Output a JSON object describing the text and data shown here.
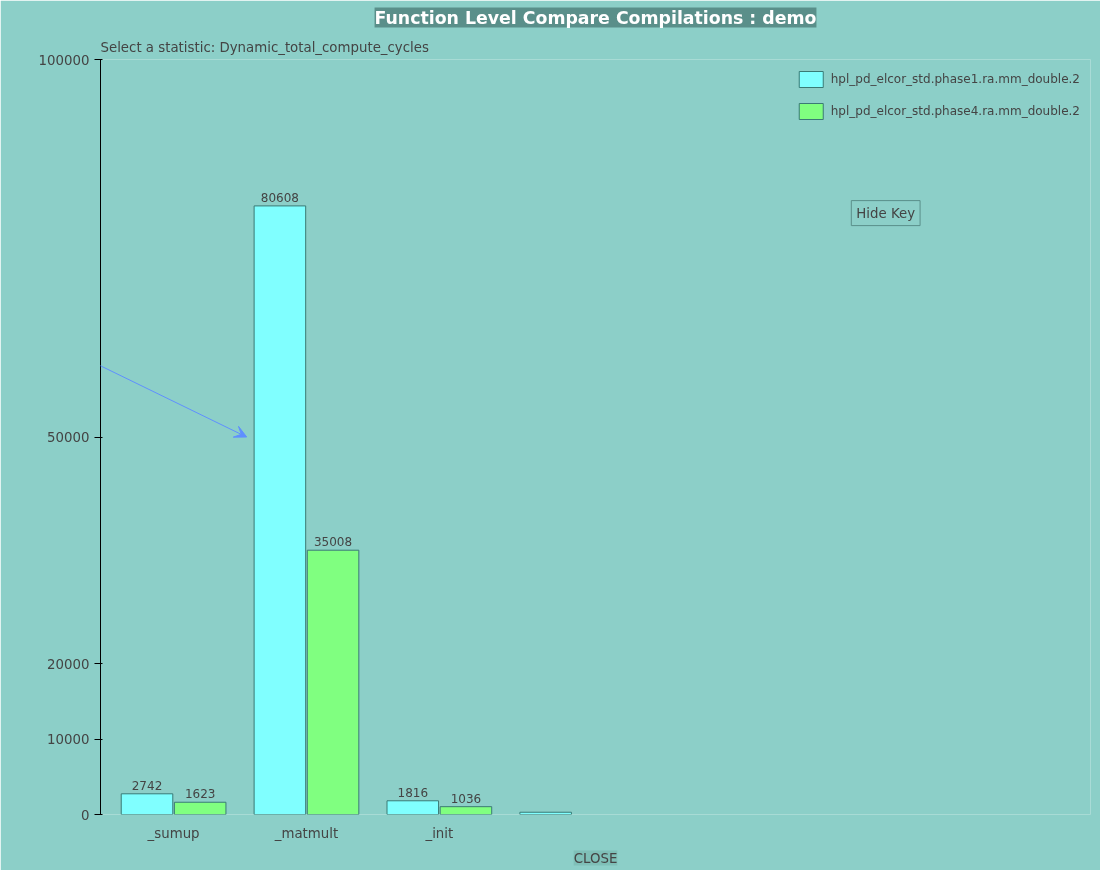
{
  "chart_data": {
    "type": "bar",
    "title": "Function Level Compare Compilations : demo",
    "subtitle": "Select a statistic: Dynamic_total_compute_cycles",
    "categories": [
      "_sumup",
      "_matmult",
      "_init",
      null
    ],
    "series": [
      {
        "name": "hpl_pd_elcor_std.phase1.ra.mm_double.2",
        "color": "#80ffff",
        "values": [
          2742,
          80608,
          1816,
          300
        ],
        "value_labels": [
          "2742",
          "80608",
          "1816",
          null
        ]
      },
      {
        "name": "hpl_pd_elcor_std.phase4.ra.mm_double.2",
        "color": "#80ff80",
        "values": [
          1623,
          35008,
          1036,
          null
        ],
        "value_labels": [
          "1623",
          "35008",
          "1036",
          null
        ]
      }
    ],
    "ylim": [
      0,
      100000
    ],
    "yticks": [
      0,
      10000,
      20000,
      50000,
      100000
    ],
    "grid": false,
    "legend": "top right",
    "annotations": [
      "Hide Key",
      "CLOSE"
    ]
  }
}
